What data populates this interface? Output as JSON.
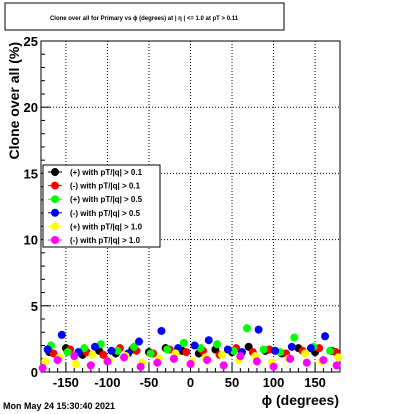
{
  "chart_data": {
    "type": "scatter",
    "title": "Clone  over all for Primary vs ϕ (degrees) at | η | <= 1.0 at pT > 0.11",
    "xlabel": "ϕ (degrees)",
    "ylabel": "Clone  over all (%)",
    "xlim": [
      -180,
      180
    ],
    "ylim": [
      0,
      25
    ],
    "x_ticks": [
      "-150",
      "-100",
      "-50",
      "0",
      "50",
      "100",
      "150"
    ],
    "x_tick_values": [
      -150,
      -100,
      -50,
      0,
      50,
      100,
      150
    ],
    "y_ticks": [
      "0",
      "5",
      "10",
      "15",
      "20",
      "25"
    ],
    "y_tick_values": [
      0,
      5,
      10,
      15,
      20,
      25
    ],
    "grid": true,
    "legend_position": "middle-left",
    "series": [
      {
        "name": "(+) with pT/|q| > 0.1",
        "color": "#000000",
        "x": [
          -170,
          -150,
          -130,
          -110,
          -90,
          -70,
          -50,
          -30,
          -10,
          10,
          30,
          50,
          70,
          90,
          110,
          130,
          150,
          170
        ],
        "y": [
          1.5,
          1.8,
          1.3,
          1.6,
          1.4,
          1.7,
          1.5,
          1.8,
          1.6,
          1.4,
          1.7,
          1.5,
          1.9,
          1.6,
          1.4,
          1.8,
          1.5,
          1.6
        ]
      },
      {
        "name": "(-) with pT/|q| > 0.1",
        "color": "#ff0000",
        "x": [
          -165,
          -145,
          -125,
          -105,
          -85,
          -65,
          -45,
          -25,
          -5,
          15,
          35,
          55,
          75,
          95,
          115,
          135,
          155,
          175
        ],
        "y": [
          1.4,
          1.7,
          1.5,
          1.3,
          1.8,
          1.6,
          1.4,
          1.7,
          1.5,
          1.6,
          1.3,
          1.8,
          1.5,
          1.7,
          1.4,
          1.6,
          1.8,
          1.5
        ]
      },
      {
        "name": "(+) with pT/|q| > 0.5",
        "color": "#00ff00",
        "x": [
          -168,
          -148,
          -128,
          -108,
          -88,
          -68,
          -48,
          -28,
          -8,
          12,
          32,
          52,
          68,
          88,
          108,
          125,
          148,
          168
        ],
        "y": [
          2.0,
          1.5,
          1.8,
          2.1,
          1.6,
          1.9,
          1.4,
          1.7,
          2.2,
          1.8,
          2.1,
          1.6,
          3.3,
          1.7,
          1.5,
          2.6,
          1.9,
          1.6
        ]
      },
      {
        "name": "(-) with pT/|q| > 0.5",
        "color": "#0000ff",
        "x": [
          -172,
          -155,
          -135,
          -115,
          -95,
          -75,
          -62,
          -35,
          -15,
          5,
          22,
          45,
          62,
          82,
          102,
          122,
          145,
          162
        ],
        "y": [
          1.7,
          2.8,
          1.5,
          1.9,
          1.6,
          1.4,
          2.3,
          3.1,
          1.8,
          2.0,
          2.4,
          1.7,
          1.5,
          3.2,
          1.6,
          1.9,
          1.8,
          2.7
        ]
      },
      {
        "name": "(+) with pT/|q| > 1.0",
        "color": "#ffff00",
        "x": [
          -175,
          -158,
          -138,
          -118,
          -98,
          -78,
          -58,
          -38,
          -18,
          2,
          18,
          38,
          58,
          78,
          98,
          118,
          138,
          158,
          178
        ],
        "y": [
          0.8,
          1.1,
          0.6,
          1.3,
          0.9,
          1.2,
          0.7,
          1.0,
          1.4,
          0.8,
          1.1,
          1.3,
          0.9,
          1.2,
          0.7,
          1.0,
          1.4,
          0.8,
          1.1
        ]
      },
      {
        "name": "(-) with pT/|q| > 1.0",
        "color": "#ff00ff",
        "x": [
          -178,
          -160,
          -140,
          -120,
          -100,
          -80,
          -60,
          -40,
          -20,
          0,
          20,
          40,
          60,
          80,
          100,
          120,
          140,
          160,
          176
        ],
        "y": [
          0.3,
          0.9,
          1.2,
          0.5,
          0.8,
          1.1,
          0.4,
          0.7,
          1.0,
          0.6,
          0.9,
          0.5,
          1.2,
          0.8,
          0.4,
          1.0,
          0.7,
          0.9,
          0.5
        ]
      }
    ]
  },
  "footer": {
    "timestamp": "Mon May 24 15:30:40 2021"
  }
}
